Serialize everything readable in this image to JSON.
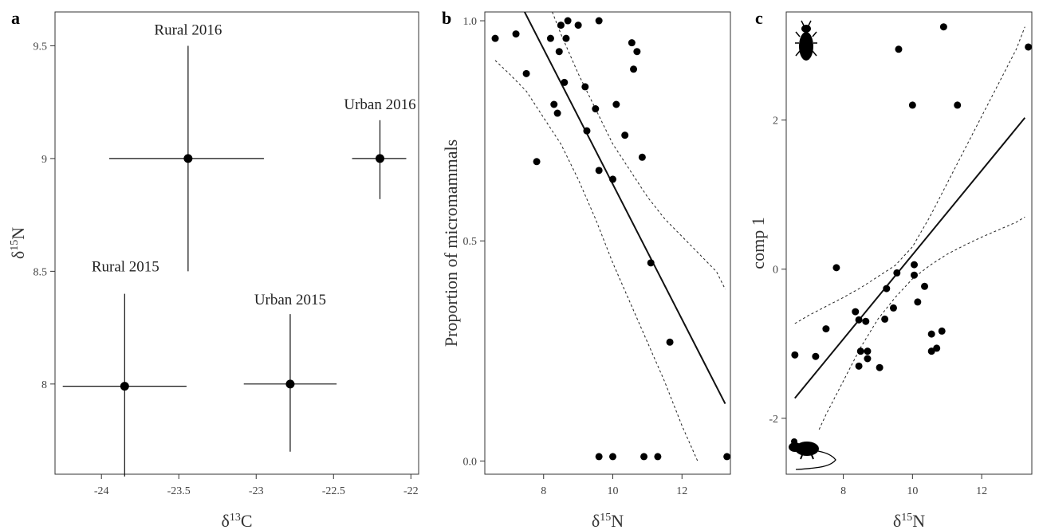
{
  "panels": {
    "a": {
      "letter": "a",
      "xlabel_main": "δ",
      "xlabel_sup": "13",
      "xlabel_tail": "C",
      "ylabel_main": "δ",
      "ylabel_sup": "15",
      "ylabel_tail": "N"
    },
    "b": {
      "letter": "b",
      "xlabel_main": "δ",
      "xlabel_sup": "15",
      "xlabel_tail": "N",
      "ylabel": "Proportion of micromammals"
    },
    "c": {
      "letter": "c",
      "xlabel_main": "δ",
      "xlabel_sup": "15",
      "xlabel_tail": "N",
      "ylabel": "comp 1",
      "icons": [
        "beetle-icon",
        "mouse-icon"
      ]
    }
  },
  "chart_data": [
    {
      "type": "scatter",
      "panel": "a",
      "xlim": [
        -24.3,
        -21.95
      ],
      "ylim": [
        7.6,
        9.65
      ],
      "xticks": [
        -24,
        -23.5,
        -23,
        -22.5,
        -22
      ],
      "xtick_labels": [
        "-24",
        "-23.5",
        "-23",
        "-22.5",
        "-22"
      ],
      "yticks": [
        8,
        8.5,
        9,
        9.5
      ],
      "ytick_labels": [
        "8",
        "8.5",
        "9",
        "9.5"
      ],
      "points": [
        {
          "name": "Rural 2016",
          "x": -23.44,
          "y": 9.0,
          "xmin": -23.95,
          "xmax": -22.95,
          "ymin": 8.5,
          "ymax": 9.5
        },
        {
          "name": "Urban 2016",
          "x": -22.2,
          "y": 9.0,
          "xmin": -22.38,
          "xmax": -22.03,
          "ymin": 8.82,
          "ymax": 9.17
        },
        {
          "name": "Rural 2015",
          "x": -23.85,
          "y": 7.99,
          "xmin": -24.25,
          "xmax": -23.45,
          "ymin": 7.59,
          "ymax": 8.4
        },
        {
          "name": "Urban 2015",
          "x": -22.78,
          "y": 8.0,
          "xmin": -23.08,
          "xmax": -22.48,
          "ymin": 7.7,
          "ymax": 8.31
        }
      ],
      "labels": [
        "Rural 2016",
        "Urban 2016",
        "Rural 2015",
        "Urban 2015"
      ]
    },
    {
      "type": "scatter",
      "panel": "b",
      "xlim": [
        6.3,
        13.4
      ],
      "ylim": [
        -0.03,
        1.02
      ],
      "xticks": [
        8,
        10,
        12
      ],
      "xtick_labels": [
        "8",
        "10",
        "12"
      ],
      "yticks": [
        0,
        0.5,
        1
      ],
      "ytick_labels": [
        "0.0",
        "0.5",
        "1.0"
      ],
      "x": [
        6.6,
        7.2,
        7.5,
        7.8,
        8.2,
        8.3,
        8.4,
        8.45,
        8.5,
        8.6,
        8.65,
        8.7,
        9.0,
        9.2,
        9.25,
        9.5,
        9.6,
        9.6,
        10.0,
        10.1,
        10.35,
        10.55,
        10.6,
        10.7,
        10.85,
        11.1,
        11.65,
        9.6,
        10.0,
        10.9,
        11.3,
        13.3
      ],
      "y": [
        0.96,
        0.97,
        0.88,
        0.68,
        0.96,
        0.81,
        0.79,
        0.93,
        0.99,
        0.86,
        0.96,
        1.0,
        0.99,
        0.85,
        0.75,
        0.8,
        0.66,
        1.0,
        0.64,
        0.81,
        0.74,
        0.95,
        0.89,
        0.93,
        0.69,
        0.45,
        0.27,
        0.01,
        0.01,
        0.01,
        0.01,
        0.01
      ],
      "fit": {
        "x": [
          7.45,
          13.25
        ],
        "y": [
          1.02,
          0.13
        ]
      },
      "ci_lower": {
        "x": [
          6.6,
          7.0,
          7.5,
          8.0,
          8.5,
          9.0,
          9.5,
          10.0,
          10.5,
          11.0,
          11.5,
          12.0,
          12.45
        ],
        "y": [
          0.91,
          0.88,
          0.84,
          0.78,
          0.72,
          0.64,
          0.55,
          0.45,
          0.36,
          0.27,
          0.18,
          0.08,
          0.0
        ]
      },
      "ci_upper": {
        "x": [
          8.25,
          8.5,
          9.0,
          9.5,
          10.0,
          10.5,
          11.0,
          11.5,
          12.0,
          12.5,
          13.0,
          13.25
        ],
        "y": [
          1.02,
          0.97,
          0.88,
          0.8,
          0.72,
          0.66,
          0.6,
          0.55,
          0.51,
          0.47,
          0.43,
          0.39
        ]
      }
    },
    {
      "type": "scatter",
      "panel": "c",
      "xlim": [
        6.35,
        13.45
      ],
      "ylim": [
        -2.75,
        3.45
      ],
      "xticks": [
        8,
        10,
        12
      ],
      "xtick_labels": [
        "8",
        "10",
        "12"
      ],
      "yticks": [
        -2,
        0,
        2
      ],
      "ytick_labels": [
        "-2",
        "0",
        "2"
      ],
      "x": [
        6.6,
        7.2,
        7.5,
        7.8,
        8.35,
        8.45,
        8.45,
        8.5,
        8.65,
        8.7,
        8.7,
        9.05,
        9.2,
        9.25,
        9.45,
        9.55,
        9.6,
        10.0,
        10.05,
        10.05,
        10.15,
        10.35,
        10.55,
        10.55,
        10.7,
        10.85,
        10.9,
        11.3,
        13.35
      ],
      "y": [
        -1.15,
        -1.17,
        -0.8,
        0.02,
        -0.57,
        -0.68,
        -1.3,
        -1.1,
        -0.7,
        -1.1,
        -1.2,
        -1.32,
        -0.67,
        -0.26,
        -0.52,
        -0.05,
        2.95,
        2.2,
        -0.08,
        0.06,
        -0.44,
        -0.23,
        -0.87,
        -1.1,
        -1.06,
        -0.83,
        3.25,
        2.2,
        2.98
      ],
      "fit": {
        "x": [
          6.6,
          13.25
        ],
        "y": [
          -1.73,
          2.03
        ]
      },
      "ci_lower": {
        "x": [
          7.3,
          7.5,
          8.0,
          8.5,
          9.0,
          9.5,
          10.0,
          10.5,
          11.0,
          11.5,
          12.0,
          12.5,
          13.0,
          13.25
        ],
        "y": [
          -2.15,
          -1.95,
          -1.5,
          -1.05,
          -0.67,
          -0.38,
          -0.13,
          0.05,
          0.2,
          0.32,
          0.43,
          0.53,
          0.63,
          0.7
        ]
      },
      "ci_upper": {
        "x": [
          6.6,
          7.0,
          7.5,
          8.0,
          8.5,
          9.0,
          9.5,
          10.0,
          10.5,
          11.0,
          11.5,
          12.0,
          12.5,
          13.0,
          13.25
        ],
        "y": [
          -0.73,
          -0.62,
          -0.5,
          -0.38,
          -0.25,
          -0.1,
          0.05,
          0.3,
          0.7,
          1.15,
          1.6,
          2.05,
          2.5,
          2.95,
          3.25
        ]
      }
    }
  ]
}
